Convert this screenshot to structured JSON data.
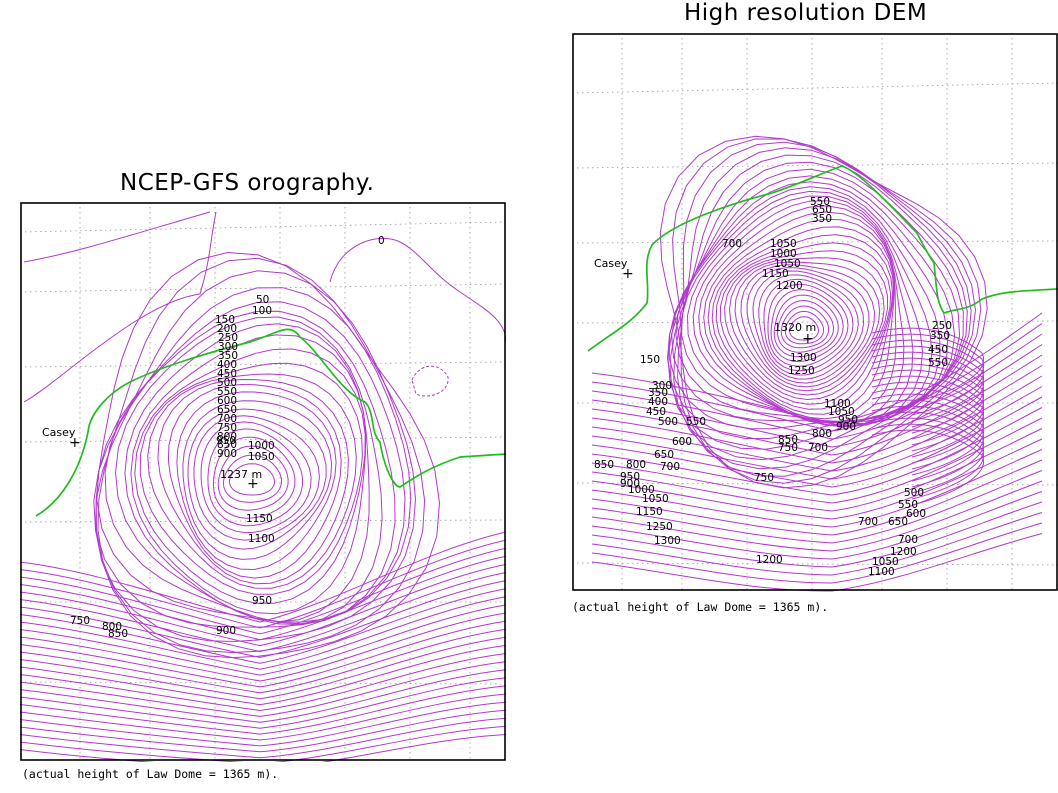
{
  "panels": [
    {
      "title": "NCEP-GFS orography.",
      "caption": "(actual height of Law Dome = 1365 m).",
      "station": "Casey",
      "peak_label": "1237 m",
      "contour_labels": [
        "0",
        "50",
        "100",
        "150",
        "200",
        "250",
        "300",
        "350",
        "400",
        "450",
        "500",
        "550",
        "600",
        "650",
        "700",
        "750",
        "800",
        "850",
        "900",
        "950",
        "1000",
        "1050",
        "1100",
        "1150",
        "750",
        "800",
        "850",
        "900",
        "950"
      ]
    },
    {
      "title": "High resolution DEM",
      "caption": "(actual height of Law Dome = 1365 m).",
      "station": "Casey",
      "peak_label": "1320 m",
      "contour_labels": [
        "550",
        "650",
        "350",
        "700",
        "1050",
        "1000",
        "1050",
        "1150",
        "1200",
        "1300",
        "1250",
        "1100",
        "1050",
        "950",
        "900",
        "850",
        "800",
        "750",
        "700",
        "150",
        "300",
        "350",
        "400",
        "450",
        "500",
        "550",
        "600",
        "650",
        "700",
        "850",
        "800",
        "950",
        "900",
        "1000",
        "1050",
        "1150",
        "1250",
        "1300",
        "750",
        "1200",
        "500",
        "550",
        "600",
        "700",
        "650",
        "700",
        "1050",
        "1100",
        "1200",
        "250",
        "350",
        "450",
        "550"
      ]
    }
  ],
  "colors": {
    "contour": "#b03acb",
    "coastline": "#22bb22",
    "grid": "#9a9a9a",
    "frame": "#000000"
  }
}
